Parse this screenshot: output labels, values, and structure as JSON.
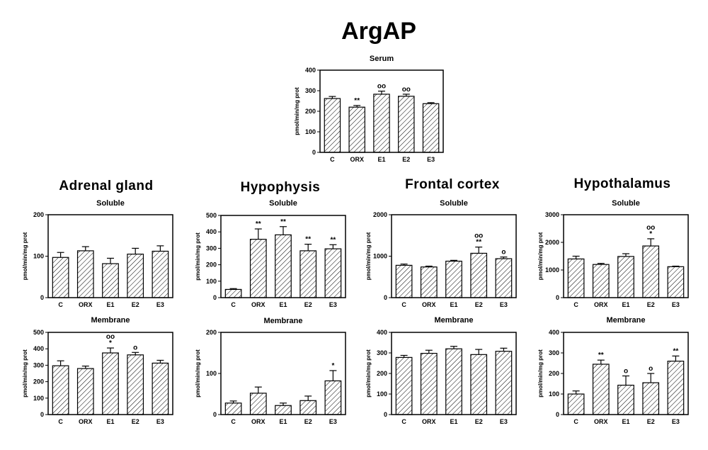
{
  "title": "ArgAP",
  "sections": [
    {
      "name": "Adrenal gland"
    },
    {
      "name": "Hypophysis"
    },
    {
      "name": "Frontal cortex"
    },
    {
      "name": "Hypothalamus"
    }
  ],
  "chart_data": [
    {
      "type": "bar",
      "id": "serum",
      "title": "Serum",
      "categories": [
        "C",
        "ORX",
        "E1",
        "E2",
        "E3"
      ],
      "values": [
        262,
        220,
        283,
        273,
        237
      ],
      "errors": [
        10,
        8,
        15,
        10,
        5
      ],
      "significance": [
        "",
        "**",
        "oo",
        "oo",
        ""
      ],
      "ylabel": "pmol/min/mg prot",
      "ylim": [
        0,
        400
      ],
      "yticks": [
        0,
        100,
        200,
        300,
        400
      ]
    },
    {
      "type": "bar",
      "id": "adrenal-soluble",
      "title": "Soluble",
      "categories": [
        "C",
        "ORX",
        "E1",
        "E2",
        "E3"
      ],
      "values": [
        97,
        113,
        82,
        105,
        112
      ],
      "errors": [
        12,
        10,
        13,
        14,
        13
      ],
      "significance": [
        "",
        "",
        "",
        "",
        ""
      ],
      "ylabel": "pmol/min/mg prot",
      "ylim": [
        0,
        200
      ],
      "yticks": [
        0,
        100,
        200
      ]
    },
    {
      "type": "bar",
      "id": "adrenal-membrane",
      "title": "Membrane",
      "categories": [
        "C",
        "ORX",
        "E1",
        "E2",
        "E3"
      ],
      "values": [
        297,
        280,
        375,
        363,
        313
      ],
      "errors": [
        30,
        15,
        30,
        15,
        17
      ],
      "significance": [
        "",
        "",
        "oo *",
        "o",
        ""
      ],
      "ylabel": "pmol/min/mg prot",
      "ylim": [
        0,
        500
      ],
      "yticks": [
        0,
        100,
        200,
        300,
        400,
        500
      ]
    },
    {
      "type": "bar",
      "id": "hypophysis-soluble",
      "title": "Soluble",
      "categories": [
        "C",
        "ORX",
        "E1",
        "E2",
        "E3"
      ],
      "values": [
        50,
        355,
        382,
        285,
        297
      ],
      "errors": [
        5,
        63,
        50,
        40,
        25
      ],
      "significance": [
        "",
        "**",
        "**",
        "**",
        "**"
      ],
      "ylabel": "pmol/min/mg prot",
      "ylim": [
        0,
        500
      ],
      "yticks": [
        0,
        100,
        200,
        300,
        400,
        500
      ]
    },
    {
      "type": "bar",
      "id": "hypophysis-membrane",
      "title": "Membrane",
      "categories": [
        "C",
        "ORX",
        "E1",
        "E2",
        "E3"
      ],
      "values": [
        28,
        52,
        22,
        34,
        82
      ],
      "errors": [
        5,
        15,
        6,
        11,
        25
      ],
      "significance": [
        "",
        "",
        "",
        "",
        "*"
      ],
      "ylabel": "pmol/min/mg prot",
      "ylim": [
        0,
        200
      ],
      "yticks": [
        0,
        100,
        200
      ]
    },
    {
      "type": "bar",
      "id": "frontal-soluble",
      "title": "Soluble",
      "categories": [
        "C",
        "ORX",
        "E1",
        "E2",
        "E3"
      ],
      "values": [
        780,
        740,
        880,
        1070,
        940
      ],
      "errors": [
        30,
        20,
        20,
        150,
        40
      ],
      "significance": [
        "",
        "",
        "",
        "oo **",
        "o"
      ],
      "ylabel": "pmol/min/mg prot",
      "ylim": [
        0,
        2000
      ],
      "yticks": [
        0,
        1000,
        2000
      ]
    },
    {
      "type": "bar",
      "id": "frontal-membrane",
      "title": "Membrane",
      "categories": [
        "C",
        "ORX",
        "E1",
        "E2",
        "E3"
      ],
      "values": [
        278,
        298,
        320,
        292,
        308
      ],
      "errors": [
        10,
        15,
        12,
        25,
        15
      ],
      "significance": [
        "",
        "",
        "",
        "",
        ""
      ],
      "ylabel": "pmol/min/mg prot",
      "ylim": [
        0,
        400
      ],
      "yticks": [
        0,
        100,
        200,
        300,
        400
      ]
    },
    {
      "type": "bar",
      "id": "hypothalamus-soluble",
      "title": "Soluble",
      "categories": [
        "C",
        "ORX",
        "E1",
        "E2",
        "E3"
      ],
      "values": [
        1400,
        1200,
        1490,
        1870,
        1120
      ],
      "errors": [
        100,
        40,
        100,
        260,
        20
      ],
      "significance": [
        "",
        "",
        "",
        "oo *",
        ""
      ],
      "ylabel": "pmol/min/mg prot",
      "ylim": [
        0,
        3000
      ],
      "yticks": [
        0,
        1000,
        2000,
        3000
      ]
    },
    {
      "type": "bar",
      "id": "hypothalamus-membrane",
      "title": "Membrane",
      "categories": [
        "C",
        "ORX",
        "E1",
        "E2",
        "E3"
      ],
      "values": [
        100,
        245,
        143,
        155,
        260
      ],
      "errors": [
        15,
        20,
        45,
        45,
        25
      ],
      "significance": [
        "",
        "**",
        "o",
        "o",
        "**"
      ],
      "ylabel": "pmol/min/mg prot",
      "ylim": [
        0,
        400
      ],
      "yticks": [
        0,
        100,
        200,
        300,
        400
      ]
    }
  ]
}
